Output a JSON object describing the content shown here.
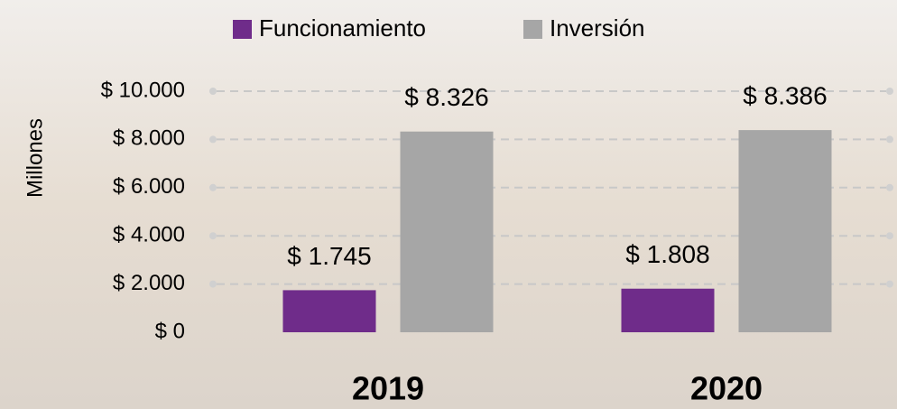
{
  "chart_data": {
    "type": "bar",
    "y_label": "Millones",
    "categories": [
      "2019",
      "2020"
    ],
    "series": [
      {
        "name": "Funcionamiento",
        "color": "#6f2c8a",
        "values": [
          1745,
          1808
        ],
        "value_labels": [
          "$ 1.745",
          "$ 1.808"
        ]
      },
      {
        "name": "Inversión",
        "color": "#a6a6a6",
        "values": [
          8326,
          8386
        ],
        "value_labels": [
          "$ 8.326",
          "$ 8.386"
        ]
      }
    ],
    "ylim": [
      0,
      10000
    ],
    "yticks": [
      {
        "value": 0,
        "label": "$ 0"
      },
      {
        "value": 2000,
        "label": "$ 2.000"
      },
      {
        "value": 4000,
        "label": "$ 4.000"
      },
      {
        "value": 6000,
        "label": "$ 6.000"
      },
      {
        "value": 8000,
        "label": "$ 8.000"
      },
      {
        "value": 10000,
        "label": "$ 10.000"
      }
    ],
    "grid": true
  }
}
